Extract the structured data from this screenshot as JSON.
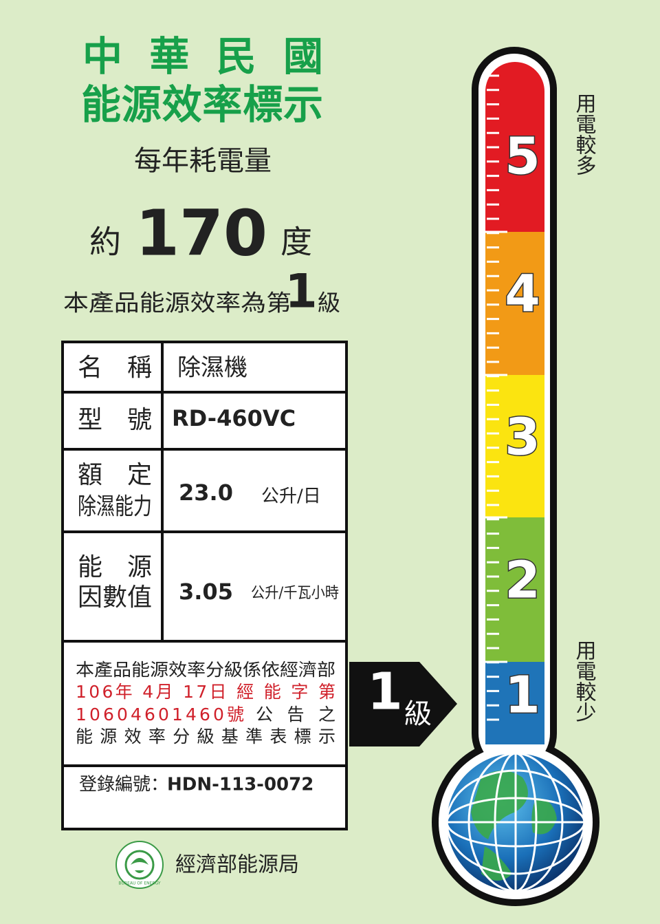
{
  "header": {
    "line1": "中華民國",
    "line2": "能源效率標示"
  },
  "consumption": {
    "label": "每年耗電量",
    "prefix": "約",
    "value": "170",
    "unit": "度"
  },
  "grade_statement": {
    "prefix": "本產品能源效率為第",
    "grade": "1",
    "suffix": "級"
  },
  "table": {
    "rows": [
      {
        "label": [
          "名稱"
        ],
        "value": "除濕機"
      },
      {
        "label": [
          "型號"
        ],
        "value": "RD-460VC"
      },
      {
        "label": [
          "額定",
          "除濕能力"
        ],
        "value": "23.0",
        "unit": "公升/日"
      },
      {
        "label": [
          "能源",
          "因數值"
        ],
        "value": "3.05",
        "unit": "公升/千瓦小時"
      }
    ]
  },
  "notice": {
    "line1": "本產品能源效率分級係依經濟部",
    "line2": "106年 4月 17日 經 能 字 第",
    "line3_red": "10604601460號",
    "line3_black": "公 告 之",
    "line4": "能 源 效 率 分 級 基 準 表 標 示"
  },
  "registration": {
    "label": "登錄編號：",
    "value": "HDN-113-0072"
  },
  "arrow": {
    "grade": "1",
    "unit": "級"
  },
  "thermometer": {
    "levels": [
      "5",
      "4",
      "3",
      "2",
      "1"
    ],
    "high_label": "用電較多",
    "low_label": "用電較少"
  },
  "footer": {
    "agency": "經濟部能源局",
    "logo_text": "BUREAU OF ENERGY"
  }
}
